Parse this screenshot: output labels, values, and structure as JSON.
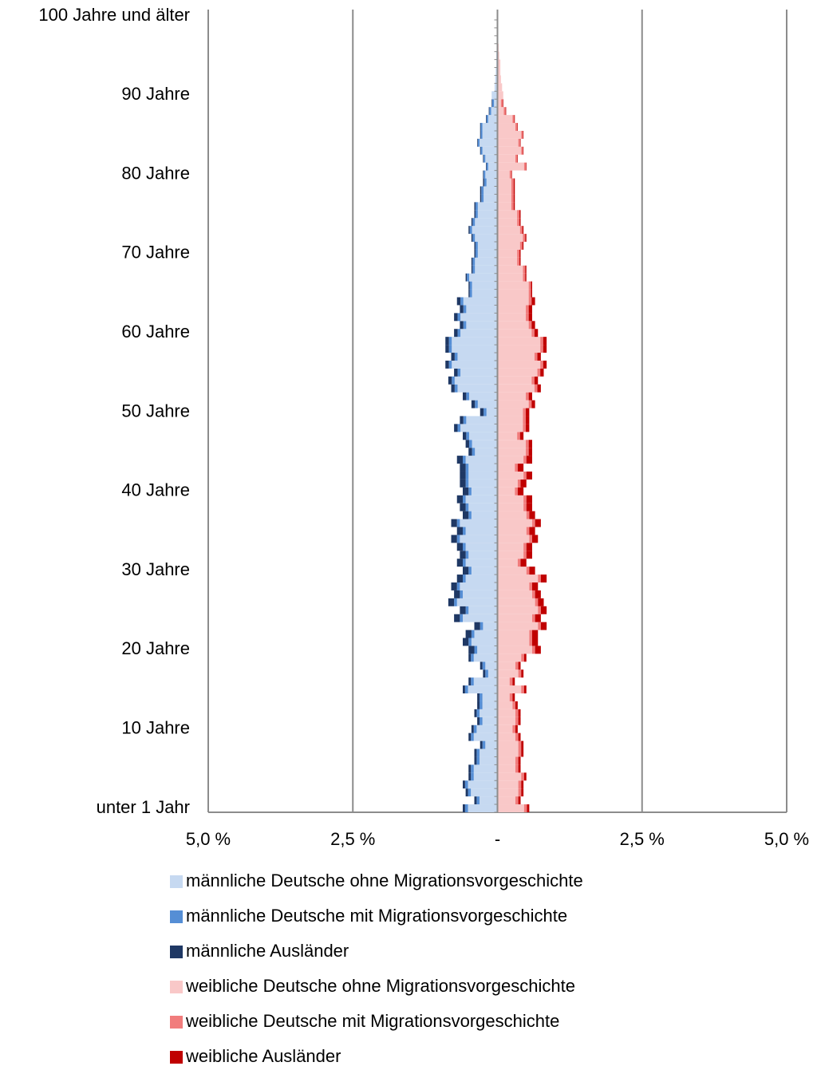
{
  "chart_data": {
    "type": "bar",
    "horizontal": true,
    "stacked": true,
    "grid": true,
    "categories": [
      "unter 1 Jahr",
      null,
      null,
      null,
      null,
      null,
      null,
      null,
      null,
      null,
      "10 Jahre",
      null,
      null,
      null,
      null,
      null,
      null,
      null,
      null,
      null,
      "20 Jahre",
      null,
      null,
      null,
      null,
      null,
      null,
      null,
      null,
      null,
      "30 Jahre",
      null,
      null,
      null,
      null,
      null,
      null,
      null,
      null,
      null,
      "40 Jahre",
      null,
      null,
      null,
      null,
      null,
      null,
      null,
      null,
      null,
      "50 Jahre",
      null,
      null,
      null,
      null,
      null,
      null,
      null,
      null,
      null,
      "60 Jahre",
      null,
      null,
      null,
      null,
      null,
      null,
      null,
      null,
      null,
      "70 Jahre",
      null,
      null,
      null,
      null,
      null,
      null,
      null,
      null,
      null,
      "80 Jahre",
      null,
      null,
      null,
      null,
      null,
      null,
      null,
      null,
      null,
      "90 Jahre",
      null,
      null,
      null,
      null,
      null,
      null,
      null,
      null,
      null,
      "100 Jahre und älter"
    ],
    "xlim": [
      -5,
      5
    ],
    "xticks": [
      {
        "value": -5,
        "label": "5,0 %"
      },
      {
        "value": -2.5,
        "label": "2,5 %"
      },
      {
        "value": 0,
        "label": "-"
      },
      {
        "value": 2.5,
        "label": "2,5 %"
      },
      {
        "value": 5,
        "label": "5,0 %"
      }
    ],
    "series": [
      {
        "name": "männliche Deutsche ohne Migrationsvorgeschichte",
        "color": "#c6d9f1",
        "values": [
          -0.51,
          -0.31,
          -0.46,
          -0.51,
          -0.41,
          -0.41,
          -0.31,
          -0.31,
          -0.21,
          -0.41,
          -0.36,
          -0.26,
          -0.31,
          -0.26,
          -0.26,
          -0.51,
          -0.41,
          -0.16,
          -0.21,
          -0.41,
          -0.35,
          -0.45,
          -0.4,
          -0.25,
          -0.6,
          -0.5,
          -0.7,
          -0.6,
          -0.65,
          -0.55,
          -0.45,
          -0.55,
          -0.5,
          -0.55,
          -0.65,
          -0.55,
          -0.65,
          -0.45,
          -0.5,
          -0.55,
          -0.45,
          -0.5,
          -0.5,
          -0.5,
          -0.55,
          -0.39,
          -0.44,
          -0.49,
          -0.64,
          -0.54,
          -0.19,
          -0.34,
          -0.49,
          -0.69,
          -0.74,
          -0.64,
          -0.79,
          -0.69,
          -0.79,
          -0.79,
          -0.64,
          -0.54,
          -0.64,
          -0.54,
          -0.59,
          -0.44,
          -0.44,
          -0.49,
          -0.39,
          -0.39,
          -0.34,
          -0.34,
          -0.39,
          -0.44,
          -0.39,
          -0.34,
          -0.34,
          -0.24,
          -0.24,
          -0.19,
          -0.21,
          -0.16,
          -0.21,
          -0.26,
          -0.31,
          -0.26,
          -0.26,
          -0.16,
          -0.11,
          -0.06,
          -0.1,
          -0.05,
          -0.04,
          -0.03,
          -0.02,
          -0.02,
          -0.01,
          -0.01,
          -0.01,
          -0.01,
          -0.01
        ]
      },
      {
        "name": "männliche Deutsche mit Migrationsvorgeschichte",
        "color": "#558ed5",
        "values": [
          -0.05,
          -0.05,
          -0.05,
          -0.05,
          -0.05,
          -0.05,
          -0.05,
          -0.05,
          -0.05,
          -0.05,
          -0.05,
          -0.05,
          -0.05,
          -0.05,
          -0.05,
          -0.05,
          -0.05,
          -0.05,
          -0.05,
          -0.05,
          -0.05,
          -0.05,
          -0.05,
          -0.05,
          -0.05,
          -0.05,
          -0.05,
          -0.05,
          -0.05,
          -0.05,
          -0.05,
          -0.05,
          -0.05,
          -0.05,
          -0.05,
          -0.05,
          -0.05,
          -0.05,
          -0.05,
          -0.05,
          -0.05,
          -0.05,
          -0.05,
          -0.05,
          -0.05,
          -0.05,
          -0.05,
          -0.05,
          -0.05,
          -0.05,
          -0.05,
          -0.05,
          -0.05,
          -0.05,
          -0.05,
          -0.05,
          -0.05,
          -0.05,
          -0.05,
          -0.05,
          -0.05,
          -0.05,
          -0.05,
          -0.05,
          -0.05,
          -0.04,
          -0.04,
          -0.04,
          -0.04,
          -0.04,
          -0.04,
          -0.04,
          -0.04,
          -0.04,
          -0.04,
          -0.04,
          -0.04,
          -0.04,
          -0.04,
          -0.04,
          -0.03,
          -0.03,
          -0.03,
          -0.03,
          -0.03,
          -0.03,
          -0.03,
          -0.03,
          -0.03,
          -0.03,
          0,
          0,
          0,
          0,
          0,
          0,
          0,
          0,
          0,
          0,
          0
        ]
      },
      {
        "name": "männliche Ausländer",
        "color": "#1f3864",
        "values": [
          -0.04,
          -0.04,
          -0.04,
          -0.04,
          -0.04,
          -0.04,
          -0.04,
          -0.04,
          -0.04,
          -0.04,
          -0.04,
          -0.04,
          -0.04,
          -0.04,
          -0.04,
          -0.04,
          -0.04,
          -0.04,
          -0.04,
          -0.04,
          -0.1,
          -0.1,
          -0.1,
          -0.1,
          -0.1,
          -0.1,
          -0.1,
          -0.1,
          -0.1,
          -0.1,
          -0.1,
          -0.1,
          -0.1,
          -0.1,
          -0.1,
          -0.1,
          -0.1,
          -0.1,
          -0.1,
          -0.1,
          -0.1,
          -0.1,
          -0.1,
          -0.1,
          -0.1,
          -0.06,
          -0.06,
          -0.06,
          -0.06,
          -0.06,
          -0.06,
          -0.06,
          -0.06,
          -0.06,
          -0.06,
          -0.06,
          -0.06,
          -0.06,
          -0.06,
          -0.06,
          -0.06,
          -0.06,
          -0.06,
          -0.06,
          -0.06,
          -0.02,
          -0.02,
          -0.02,
          -0.02,
          -0.02,
          -0.02,
          -0.02,
          -0.02,
          -0.02,
          -0.02,
          -0.02,
          -0.02,
          -0.02,
          -0.02,
          -0.02,
          -0.01,
          -0.01,
          -0.01,
          -0.01,
          -0.01,
          -0.01,
          -0.01,
          -0.01,
          -0.01,
          -0.01,
          0,
          0,
          0,
          0,
          0,
          0,
          0,
          0,
          0,
          0,
          0
        ]
      },
      {
        "name": "weibliche Deutsche ohne Migrationsvorgeschichte",
        "color": "#f9c8c8",
        "values": [
          0.46,
          0.31,
          0.36,
          0.36,
          0.41,
          0.31,
          0.31,
          0.36,
          0.36,
          0.31,
          0.26,
          0.31,
          0.31,
          0.26,
          0.21,
          0.41,
          0.21,
          0.36,
          0.31,
          0.41,
          0.6,
          0.55,
          0.55,
          0.7,
          0.6,
          0.7,
          0.65,
          0.6,
          0.55,
          0.7,
          0.5,
          0.35,
          0.45,
          0.45,
          0.55,
          0.5,
          0.6,
          0.5,
          0.45,
          0.45,
          0.3,
          0.35,
          0.45,
          0.3,
          0.45,
          0.49,
          0.49,
          0.34,
          0.44,
          0.44,
          0.44,
          0.54,
          0.49,
          0.64,
          0.59,
          0.69,
          0.74,
          0.64,
          0.74,
          0.74,
          0.59,
          0.54,
          0.49,
          0.49,
          0.54,
          0.54,
          0.54,
          0.44,
          0.44,
          0.34,
          0.34,
          0.39,
          0.44,
          0.39,
          0.34,
          0.34,
          0.24,
          0.24,
          0.24,
          0.24,
          0.21,
          0.46,
          0.31,
          0.41,
          0.36,
          0.41,
          0.31,
          0.26,
          0.11,
          0.06,
          0.1,
          0.08,
          0.06,
          0.05,
          0.05,
          0.03,
          0.02,
          0.01,
          0.01,
          0.01,
          0.01
        ]
      },
      {
        "name": "weibliche Deutsche mit Migrationsvorgeschichte",
        "color": "#f17c7c",
        "values": [
          0.05,
          0.05,
          0.05,
          0.05,
          0.05,
          0.05,
          0.05,
          0.05,
          0.05,
          0.05,
          0.05,
          0.05,
          0.05,
          0.05,
          0.05,
          0.05,
          0.05,
          0.05,
          0.05,
          0.05,
          0.05,
          0.05,
          0.05,
          0.05,
          0.05,
          0.05,
          0.05,
          0.05,
          0.05,
          0.05,
          0.05,
          0.05,
          0.05,
          0.05,
          0.05,
          0.05,
          0.05,
          0.05,
          0.05,
          0.05,
          0.05,
          0.05,
          0.05,
          0.05,
          0.05,
          0.05,
          0.05,
          0.05,
          0.05,
          0.05,
          0.05,
          0.05,
          0.05,
          0.05,
          0.05,
          0.05,
          0.05,
          0.05,
          0.05,
          0.05,
          0.05,
          0.05,
          0.05,
          0.05,
          0.05,
          0.04,
          0.04,
          0.04,
          0.04,
          0.04,
          0.04,
          0.04,
          0.04,
          0.04,
          0.04,
          0.04,
          0.04,
          0.04,
          0.04,
          0.04,
          0.03,
          0.03,
          0.03,
          0.03,
          0.03,
          0.03,
          0.03,
          0.03,
          0.03,
          0.03,
          0,
          0,
          0,
          0,
          0,
          0,
          0,
          0,
          0,
          0,
          0
        ]
      },
      {
        "name": "weibliche Ausländer",
        "color": "#c00000",
        "values": [
          0.04,
          0.04,
          0.04,
          0.04,
          0.04,
          0.04,
          0.04,
          0.04,
          0.04,
          0.04,
          0.04,
          0.04,
          0.04,
          0.04,
          0.04,
          0.04,
          0.04,
          0.04,
          0.04,
          0.04,
          0.1,
          0.1,
          0.1,
          0.1,
          0.1,
          0.1,
          0.1,
          0.1,
          0.1,
          0.1,
          0.1,
          0.1,
          0.1,
          0.1,
          0.1,
          0.1,
          0.1,
          0.1,
          0.1,
          0.1,
          0.1,
          0.1,
          0.1,
          0.1,
          0.1,
          0.06,
          0.06,
          0.06,
          0.06,
          0.06,
          0.06,
          0.06,
          0.06,
          0.06,
          0.06,
          0.06,
          0.06,
          0.06,
          0.06,
          0.06,
          0.06,
          0.06,
          0.06,
          0.06,
          0.06,
          0.02,
          0.02,
          0.02,
          0.02,
          0.02,
          0.02,
          0.02,
          0.02,
          0.02,
          0.02,
          0.02,
          0.02,
          0.02,
          0.02,
          0.02,
          0.01,
          0.01,
          0.01,
          0.01,
          0.01,
          0.01,
          0.01,
          0.01,
          0.01,
          0.01,
          0,
          0,
          0,
          0,
          0,
          0,
          0,
          0,
          0,
          0,
          0
        ]
      }
    ]
  }
}
